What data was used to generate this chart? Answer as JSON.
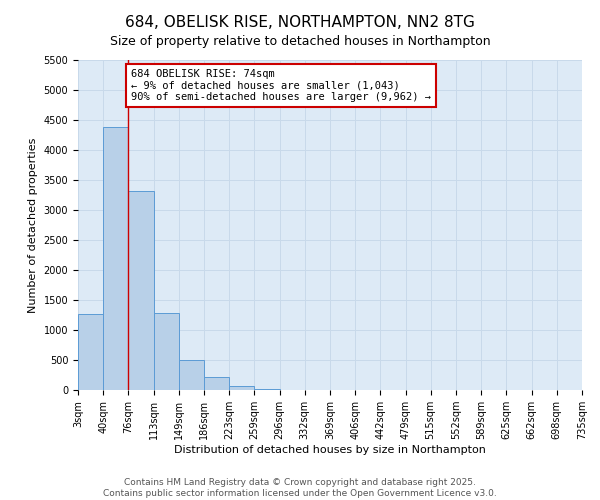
{
  "title": "684, OBELISK RISE, NORTHAMPTON, NN2 8TG",
  "subtitle": "Size of property relative to detached houses in Northampton",
  "xlabel": "Distribution of detached houses by size in Northampton",
  "ylabel": "Number of detached properties",
  "bar_heights": [
    1270,
    4380,
    3320,
    1290,
    500,
    220,
    75,
    10,
    5,
    2,
    1,
    0,
    0,
    0,
    0,
    0,
    0,
    0,
    0,
    0
  ],
  "bin_edges": [
    3,
    40,
    76,
    113,
    149,
    186,
    223,
    259,
    296,
    332,
    369,
    406,
    442,
    479,
    515,
    552,
    589,
    625,
    662,
    698,
    735
  ],
  "bar_color": "#b8d0e8",
  "bar_edge_color": "#5b9bd5",
  "highlight_line_color": "#cc0000",
  "annotation_box_color": "#cc0000",
  "ylim": [
    0,
    5500
  ],
  "yticks": [
    0,
    500,
    1000,
    1500,
    2000,
    2500,
    3000,
    3500,
    4000,
    4500,
    5000,
    5500
  ],
  "annotation_title": "684 OBELISK RISE: 74sqm",
  "annotation_line1": "← 9% of detached houses are smaller (1,043)",
  "annotation_line2": "90% of semi-detached houses are larger (9,962) →",
  "footer_line1": "Contains HM Land Registry data © Crown copyright and database right 2025.",
  "footer_line2": "Contains public sector information licensed under the Open Government Licence v3.0.",
  "grid_color": "#c8d9ea",
  "background_color": "#ddeaf6",
  "fig_background": "#ffffff",
  "title_fontsize": 11,
  "subtitle_fontsize": 9,
  "axis_label_fontsize": 8,
  "tick_fontsize": 7,
  "annotation_fontsize": 7.5,
  "footer_fontsize": 6.5
}
